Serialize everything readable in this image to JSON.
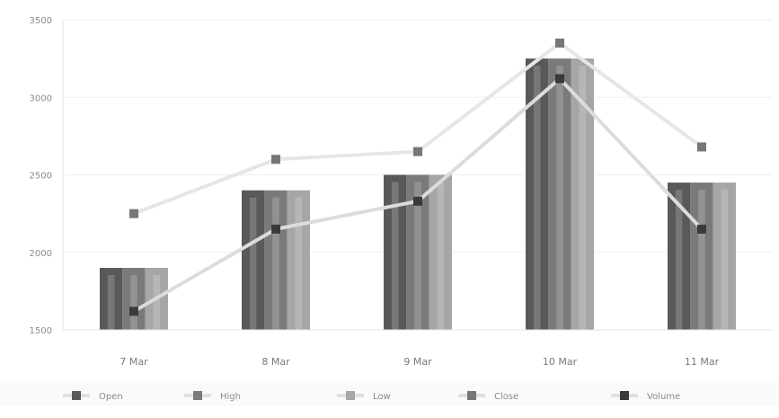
{
  "chart_data": {
    "type": "bar",
    "categories": [
      "7 Mar",
      "8 Mar",
      "9 Mar",
      "10 Mar",
      "11 Mar"
    ],
    "y_ticks": [
      "1500",
      "2000",
      "2500",
      "3000",
      "3500"
    ],
    "ylim": [
      1500,
      3500
    ],
    "grid": "horizontal",
    "legend_position": "bottom",
    "series": [
      {
        "kind": "bar",
        "name": "Open",
        "color": "#595959",
        "values": [
          1900,
          2400,
          2500,
          3250,
          2450
        ]
      },
      {
        "kind": "bar",
        "name": "High",
        "color": "#7a7a7a",
        "values": [
          1900,
          2400,
          2500,
          3250,
          2450
        ]
      },
      {
        "kind": "bar",
        "name": "Low",
        "color": "#a6a6a6",
        "values": [
          1900,
          2400,
          2500,
          3250,
          2450
        ]
      },
      {
        "kind": "line",
        "name": "Close",
        "color": "#e6e6e6",
        "marker_color": "#777777",
        "values": [
          2250,
          2600,
          2650,
          3350,
          2680
        ]
      },
      {
        "kind": "line",
        "name": "Volume",
        "color": "#dcdcdc",
        "marker_color": "#3a3a3a",
        "values": [
          1620,
          2150,
          2330,
          3120,
          2150
        ]
      }
    ],
    "legend": [
      "Open",
      "High",
      "Low",
      "Close",
      "Volume"
    ]
  }
}
